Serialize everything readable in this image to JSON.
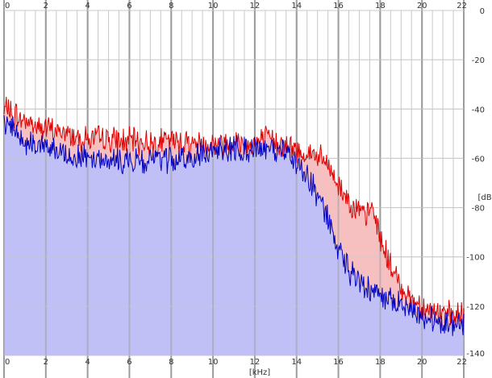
{
  "chart_data": {
    "type": "area",
    "xlabel": "[kHz]",
    "ylabel": "[dB]",
    "xlim": [
      0,
      22
    ],
    "ylim": [
      -140,
      0
    ],
    "x_ticks": [
      0,
      2,
      4,
      6,
      8,
      10,
      12,
      14,
      16,
      18,
      20,
      22
    ],
    "y_ticks": [
      0,
      -20,
      -40,
      -60,
      -80,
      -100,
      -120,
      -140
    ],
    "y_tick_labels": [
      "0",
      "-20",
      "-40",
      "-60",
      "-80",
      "-100",
      "-120",
      "-140"
    ],
    "grid": true,
    "colors": {
      "background": "#ffffff",
      "grid_major": "#9c9c9c",
      "grid_minor": "#c8c8c8",
      "red_fill": "#f7c0c0",
      "red_line": "#e00000",
      "blue_fill": "#c0c0f7",
      "blue_line": "#0000c0"
    },
    "series": [
      {
        "color": "#e00000",
        "x": [
          0.0,
          0.2,
          0.4,
          0.6,
          0.8,
          1.0,
          1.5,
          2.0,
          2.5,
          3.0,
          3.5,
          4.0,
          4.5,
          5.0,
          5.5,
          6.0,
          6.5,
          7.0,
          7.5,
          8.0,
          8.5,
          9.0,
          9.5,
          10.0,
          10.5,
          11.0,
          11.5,
          12.0,
          12.5,
          13.0,
          13.5,
          14.0,
          14.5,
          15.0,
          15.5,
          16.0,
          16.5,
          17.0,
          17.3,
          17.6,
          17.8,
          18.0,
          18.5,
          19.0,
          19.5,
          20.0,
          20.5,
          21.0,
          21.5,
          22.0
        ],
        "values": [
          -42,
          -38,
          -44,
          -42,
          -45,
          -44,
          -47,
          -48,
          -49,
          -50,
          -51,
          -52,
          -52,
          -52,
          -53,
          -53,
          -53,
          -54,
          -53,
          -53,
          -53,
          -54,
          -54,
          -54,
          -54,
          -53,
          -54,
          -54,
          -52,
          -53,
          -55,
          -57,
          -58,
          -59,
          -63,
          -71,
          -77,
          -82,
          -84,
          -80,
          -85,
          -92,
          -104,
          -112,
          -117,
          -120,
          -122,
          -123,
          -124,
          -124
        ]
      },
      {
        "color": "#0000c0",
        "x": [
          0.0,
          0.2,
          0.4,
          0.6,
          0.8,
          1.0,
          1.5,
          2.0,
          2.5,
          3.0,
          3.5,
          4.0,
          4.5,
          5.0,
          5.5,
          6.0,
          6.5,
          7.0,
          7.5,
          8.0,
          8.5,
          9.0,
          9.5,
          10.0,
          10.5,
          11.0,
          11.5,
          12.0,
          12.5,
          13.0,
          13.5,
          14.0,
          14.5,
          15.0,
          15.5,
          16.0,
          16.5,
          17.0,
          17.5,
          18.0,
          18.5,
          19.0,
          19.5,
          20.0,
          20.5,
          21.0,
          21.5,
          22.0
        ],
        "values": [
          -46,
          -44,
          -48,
          -50,
          -52,
          -53,
          -55,
          -55,
          -57,
          -58,
          -59,
          -59,
          -60,
          -60,
          -61,
          -61,
          -61,
          -61,
          -60,
          -61,
          -61,
          -60,
          -58,
          -56,
          -56,
          -56,
          -57,
          -56,
          -56,
          -57,
          -58,
          -62,
          -67,
          -75,
          -85,
          -97,
          -106,
          -110,
          -113,
          -115,
          -118,
          -120,
          -121,
          -124,
          -125,
          -126,
          -127,
          -127
        ]
      }
    ]
  }
}
